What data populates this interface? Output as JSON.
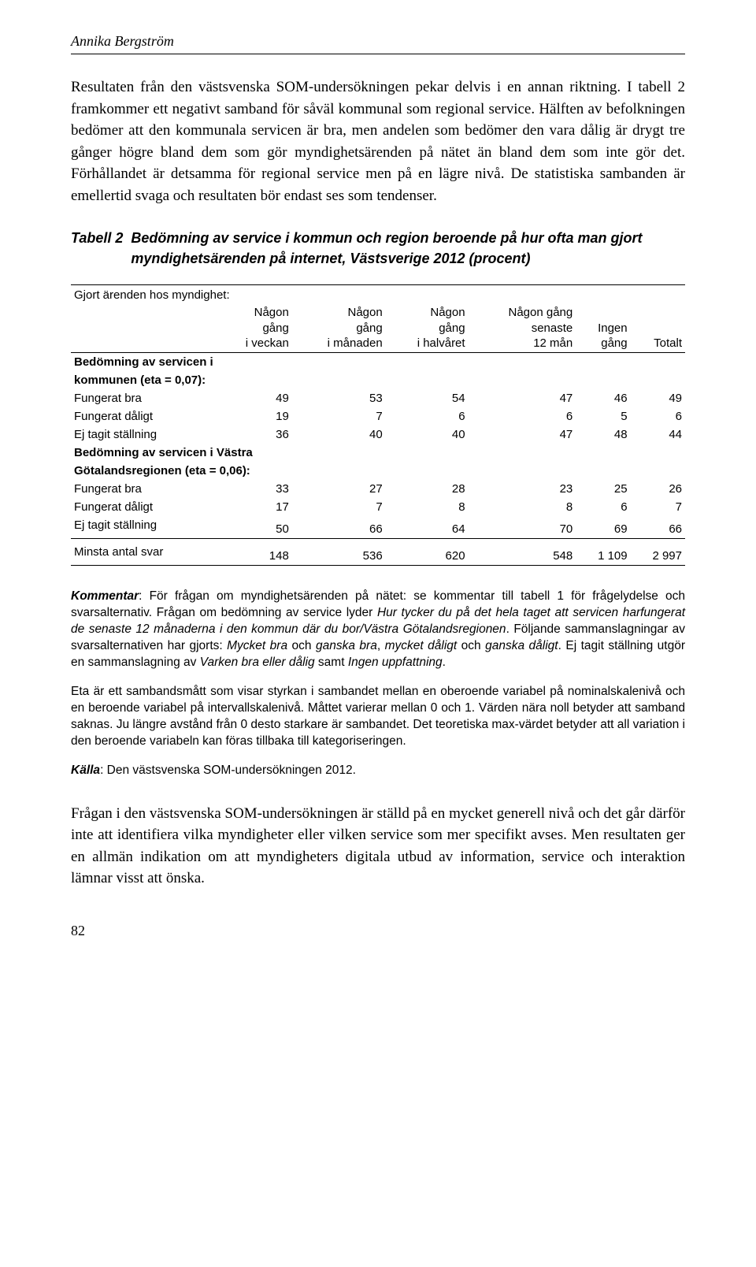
{
  "author": "Annika Bergström",
  "para1": "Resultaten från den västsvenska SOM-undersökningen pekar delvis i en annan riktning. I tabell 2 framkommer ett negativt samband för såväl kommunal som regional service. Hälften av befolkningen bedömer att den kommunala servicen är bra, men andelen som bedömer den vara dålig är drygt tre gånger högre bland dem som gör myndighetsärenden på nätet än bland dem som inte gör det. Förhållandet är detsamma för regional service men på en lägre nivå. De statistiska sambanden är emellertid svaga och resultaten bör endast ses som tendenser.",
  "table": {
    "label": "Tabell 2",
    "title": "Bedömning av service i kommun och region beroende på hur ofta man gjort myndighetsärenden på internet, Västsverige 2012 (procent)",
    "superHeader": "Gjort ärenden hos myndighet:",
    "columns": [
      "",
      "Någon\ngång\ni veckan",
      "Någon\ngång\ni månaden",
      "Någon\ngång\ni halvåret",
      "Någon gång\nsenaste\n12 mån",
      "Ingen\ngång",
      "Totalt"
    ],
    "section1": {
      "title": "Bedömning av servicen i",
      "title2": "kommunen (eta = 0,07):",
      "rows": [
        [
          "Fungerat bra",
          "49",
          "53",
          "54",
          "47",
          "46",
          "49"
        ],
        [
          "Fungerat dåligt",
          "19",
          "7",
          "6",
          "6",
          "5",
          "6"
        ],
        [
          "Ej tagit ställning",
          "36",
          "40",
          "40",
          "47",
          "48",
          "44"
        ]
      ]
    },
    "section2": {
      "title": "Bedömning av servicen i Västra",
      "title2": "Götalandsregionen (eta = 0,06):",
      "rows": [
        [
          "Fungerat bra",
          "33",
          "27",
          "28",
          "23",
          "25",
          "26"
        ],
        [
          "Fungerat dåligt",
          "17",
          "7",
          "8",
          "8",
          "6",
          "7"
        ],
        [
          "Ej tagit ställning",
          "50",
          "66",
          "64",
          "70",
          "69",
          "66"
        ]
      ]
    },
    "footer": [
      "Minsta antal svar",
      "148",
      "536",
      "620",
      "548",
      "1 109",
      "2 997"
    ]
  },
  "kommentar": {
    "p1a": "Kommentar",
    "p1b": ": För frågan om myndighetsärenden på nätet: se kommentar till tabell 1 för frågelydelse och svarsalternativ. Frågan om bedömning av service lyder ",
    "p1c": "Hur tycker du på det hela taget att servicen harfungerat de senaste 12 månaderna i den kommun där du bor/Västra Götalandsregionen",
    "p1d": ". Följande sammanslagningar av svarsalternativen har gjorts: ",
    "p1e": "Mycket bra",
    "p1f": " och ",
    "p1g": "ganska bra",
    "p1h": ", ",
    "p1i": "mycket dåligt",
    "p1j": " och ",
    "p1k": "ganska dåligt",
    "p1l": ". Ej tagit ställning utgör en sammanslagning av ",
    "p1m": "Varken bra eller dålig",
    "p1n": " samt ",
    "p1o": "Ingen uppfattning",
    "p1p": ".",
    "p2": "Eta är ett sambandsmått som visar styrkan i sambandet mellan en oberoende variabel på nominalskalenivå och en beroende variabel på intervallskalenivå. Måttet varierar mellan 0 och 1. Värden nära noll betyder att samband saknas. Ju längre avstånd från 0 desto starkare är sambandet. Det teoretiska max-värdet betyder att all variation i den beroende variabeln kan föras tillbaka till kategoriseringen.",
    "p3a": "Källa",
    "p3b": ": Den västsvenska SOM-undersökningen 2012."
  },
  "para2": "Frågan i den västsvenska SOM-undersökningen är ställd på en mycket generell nivå och det går därför inte att identifiera vilka myndigheter eller vilken service som mer specifikt avses. Men resultaten ger en allmän indikation om att myndigheters digitala utbud av information, service och interaktion lämnar visst att önska.",
  "pageNum": "82"
}
